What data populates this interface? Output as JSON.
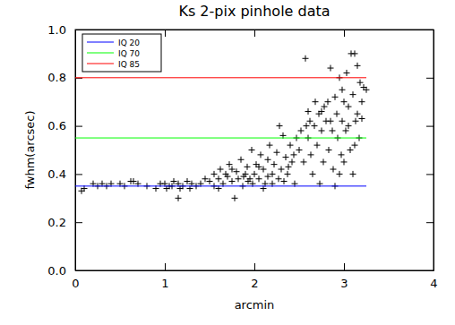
{
  "chart_data": {
    "type": "scatter",
    "title": "Ks 2-pix pinhole data",
    "x_label": "arcmin",
    "y_label": "fwhm(arcsec)",
    "xlim": [
      0,
      4
    ],
    "ylim": [
      0,
      1
    ],
    "xticks": [
      0,
      1,
      2,
      3,
      4
    ],
    "yticks": [
      {
        "value": 0,
        "label": "0.0"
      },
      0.2,
      0.4,
      0.6,
      0.8,
      {
        "value": 1,
        "label": "1.0"
      }
    ],
    "legend": "upper left",
    "series": [
      {
        "type": "scatter",
        "marker": "plus",
        "color": "#000000",
        "x": [
          0.07,
          0.1,
          0.2,
          0.25,
          0.3,
          0.35,
          0.4,
          0.5,
          0.55,
          0.62,
          0.65,
          0.7,
          0.8,
          0.9,
          0.95,
          1.0,
          1.02,
          1.05,
          1.08,
          1.1,
          1.15,
          1.15,
          1.17,
          1.2,
          1.25,
          1.28,
          1.3,
          1.35,
          1.4,
          1.45,
          1.5,
          1.55,
          1.55,
          1.6,
          1.6,
          1.62,
          1.65,
          1.68,
          1.7,
          1.72,
          1.75,
          1.75,
          1.78,
          1.8,
          1.82,
          1.85,
          1.87,
          1.88,
          1.9,
          1.92,
          1.93,
          1.95,
          1.97,
          1.98,
          2.0,
          2.02,
          2.05,
          2.05,
          2.07,
          2.1,
          2.1,
          2.12,
          2.15,
          2.15,
          2.17,
          2.2,
          2.2,
          2.22,
          2.25,
          2.27,
          2.28,
          2.3,
          2.32,
          2.33,
          2.35,
          2.37,
          2.38,
          2.4,
          2.42,
          2.44,
          2.45,
          2.47,
          2.5,
          2.52,
          2.55,
          2.57,
          2.58,
          2.6,
          2.6,
          2.62,
          2.63,
          2.65,
          2.67,
          2.68,
          2.7,
          2.72,
          2.73,
          2.75,
          2.75,
          2.77,
          2.78,
          2.8,
          2.82,
          2.83,
          2.85,
          2.85,
          2.87,
          2.88,
          2.9,
          2.9,
          2.92,
          2.93,
          2.95,
          2.95,
          2.97,
          2.98,
          2.98,
          3.0,
          3.0,
          3.02,
          3.03,
          3.05,
          3.05,
          3.07,
          3.08,
          3.1,
          3.1,
          3.12,
          3.12,
          3.13,
          3.15,
          3.15,
          3.17,
          3.18,
          3.2,
          3.2,
          3.22,
          3.25
        ],
        "values": [
          0.33,
          0.34,
          0.36,
          0.35,
          0.36,
          0.35,
          0.36,
          0.36,
          0.35,
          0.37,
          0.37,
          0.36,
          0.35,
          0.34,
          0.36,
          0.36,
          0.34,
          0.35,
          0.35,
          0.37,
          0.36,
          0.3,
          0.34,
          0.35,
          0.37,
          0.34,
          0.36,
          0.35,
          0.36,
          0.38,
          0.37,
          0.4,
          0.35,
          0.38,
          0.34,
          0.42,
          0.36,
          0.4,
          0.39,
          0.44,
          0.37,
          0.42,
          0.3,
          0.41,
          0.38,
          0.46,
          0.35,
          0.39,
          0.4,
          0.43,
          0.37,
          0.38,
          0.5,
          0.36,
          0.4,
          0.44,
          0.38,
          0.43,
          0.48,
          0.42,
          0.34,
          0.36,
          0.46,
          0.39,
          0.52,
          0.4,
          0.36,
          0.44,
          0.49,
          0.38,
          0.6,
          0.42,
          0.56,
          0.37,
          0.47,
          0.4,
          0.43,
          0.52,
          0.45,
          0.48,
          0.36,
          0.55,
          0.5,
          0.58,
          0.45,
          0.88,
          0.6,
          0.55,
          0.66,
          0.62,
          0.48,
          0.4,
          0.6,
          0.7,
          0.52,
          0.65,
          0.36,
          0.58,
          0.66,
          0.45,
          0.68,
          0.62,
          0.7,
          0.5,
          0.84,
          0.62,
          0.58,
          0.42,
          0.72,
          0.35,
          0.65,
          0.55,
          0.8,
          0.4,
          0.48,
          0.62,
          0.75,
          0.7,
          0.45,
          0.58,
          0.82,
          0.68,
          0.6,
          0.5,
          0.9,
          0.73,
          0.4,
          0.9,
          0.52,
          0.62,
          0.85,
          0.65,
          0.55,
          0.78,
          0.7,
          0.63,
          0.76,
          0.75
        ]
      },
      {
        "name": "IQ 20",
        "type": "line",
        "color": "#0000ff",
        "x": [
          0,
          3.25
        ],
        "values": [
          0.35,
          0.35
        ]
      },
      {
        "name": "IQ 70",
        "type": "line",
        "color": "#00ff00",
        "x": [
          0,
          3.25
        ],
        "values": [
          0.55,
          0.55
        ]
      },
      {
        "name": "IQ 85",
        "type": "line",
        "color": "#ff0000",
        "x": [
          0,
          3.25
        ],
        "values": [
          0.8,
          0.8
        ]
      }
    ]
  }
}
